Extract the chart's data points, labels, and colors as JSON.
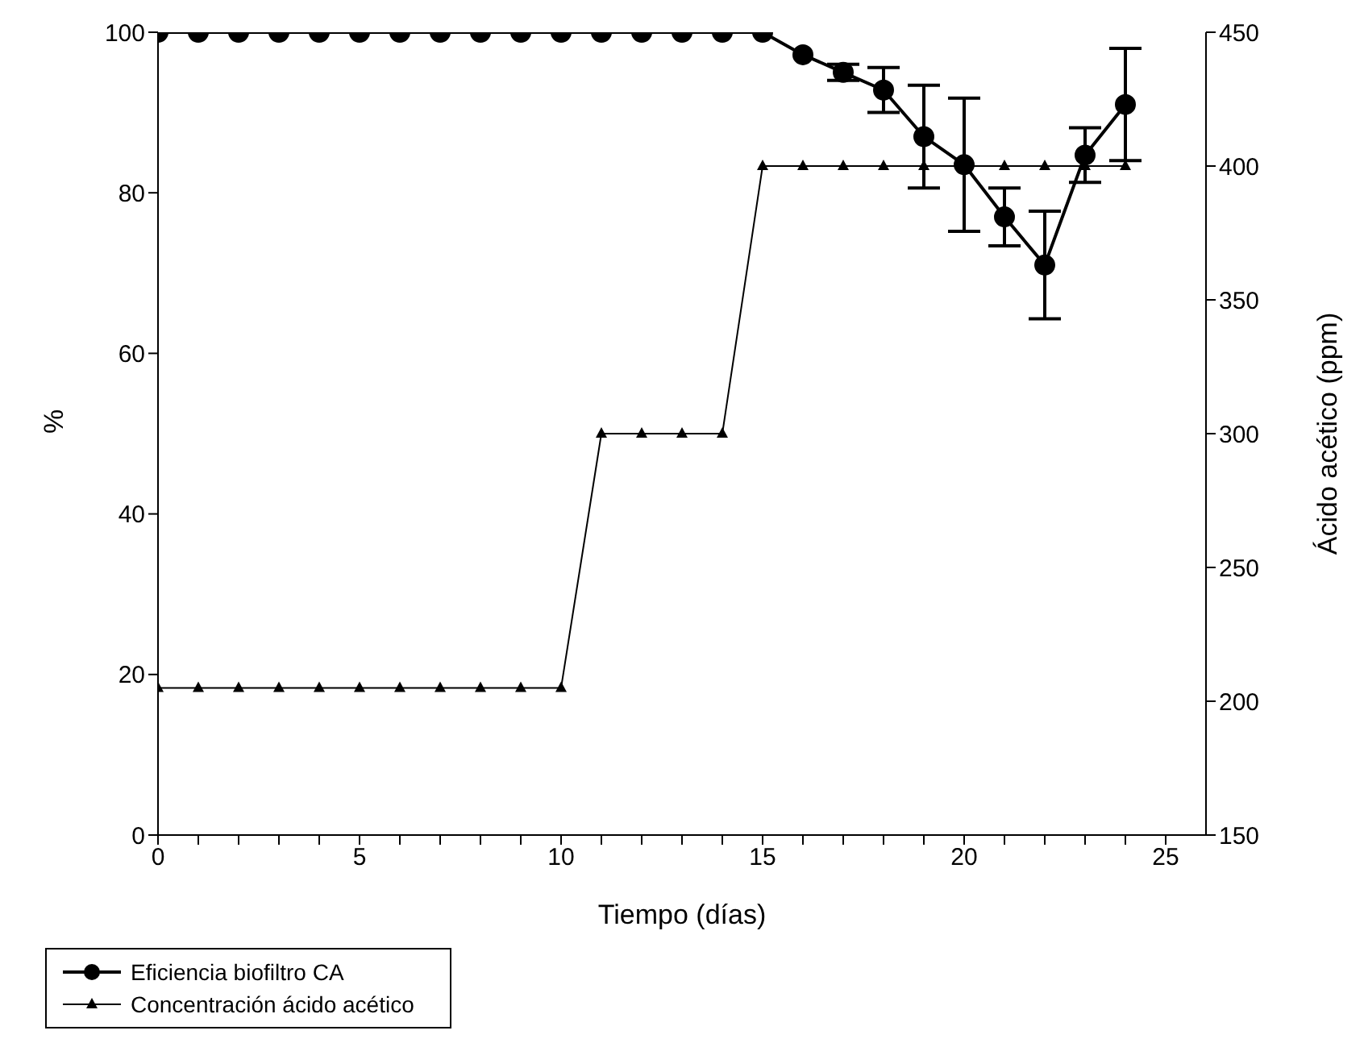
{
  "chart_data": {
    "type": "line",
    "xlabel": "Tiempo (días)",
    "ylabel": "%",
    "y2label": "Ácido acético (ppm)",
    "x": [
      0,
      1,
      2,
      3,
      4,
      5,
      6,
      7,
      8,
      9,
      10,
      11,
      12,
      13,
      14,
      15,
      16,
      17,
      18,
      19,
      20,
      21,
      22,
      23,
      24
    ],
    "series": [
      {
        "name": "Eficiencia biofiltro CA",
        "color": "#000000",
        "marker": "circle",
        "values": [
          100,
          100,
          100,
          100,
          100,
          100,
          100,
          100,
          100,
          100,
          100,
          100,
          100,
          100,
          100,
          100,
          97.2,
          95,
          92.8,
          87,
          83.5,
          77,
          71,
          84.7,
          91
        ],
        "errors": [
          null,
          null,
          null,
          null,
          null,
          null,
          null,
          null,
          null,
          null,
          null,
          null,
          null,
          null,
          null,
          null,
          null,
          1,
          2.8,
          6.4,
          8.3,
          3.6,
          6.7,
          3.4,
          7
        ]
      },
      {
        "name": "Concentración ácido acético",
        "color": "#000000",
        "marker": "triangle",
        "axis": "y2",
        "values": [
          205,
          205,
          205,
          205,
          205,
          205,
          205,
          205,
          205,
          205,
          205,
          300,
          300,
          300,
          300,
          400,
          400,
          400,
          400,
          400,
          400,
          400,
          400,
          400,
          400
        ]
      }
    ],
    "xlim": [
      0,
      26
    ],
    "xticks": [
      0,
      {
        "value": 1,
        "label": null
      },
      {
        "value": 2,
        "label": null
      },
      {
        "value": 3,
        "label": null
      },
      {
        "value": 4,
        "label": null
      },
      5,
      {
        "value": 6,
        "label": null
      },
      {
        "value": 7,
        "label": null
      },
      {
        "value": 8,
        "label": null
      },
      {
        "value": 9,
        "label": null
      },
      10,
      {
        "value": 11,
        "label": null
      },
      {
        "value": 12,
        "label": null
      },
      {
        "value": 13,
        "label": null
      },
      {
        "value": 14,
        "label": null
      },
      15,
      {
        "value": 16,
        "label": null
      },
      {
        "value": 17,
        "label": null
      },
      {
        "value": 18,
        "label": null
      },
      {
        "value": 19,
        "label": null
      },
      20,
      {
        "value": 21,
        "label": null
      },
      {
        "value": 22,
        "label": null
      },
      {
        "value": 23,
        "label": null
      },
      {
        "value": 24,
        "label": null
      },
      25
    ],
    "ylim": [
      0,
      100
    ],
    "yticks": [
      0,
      20,
      40,
      60,
      80,
      100
    ],
    "y2lim": [
      150,
      450
    ],
    "y2ticks": [
      150,
      200,
      250,
      300,
      350,
      400,
      450
    ],
    "grid": false,
    "legend": "bottom left",
    "line_style": "solid"
  }
}
